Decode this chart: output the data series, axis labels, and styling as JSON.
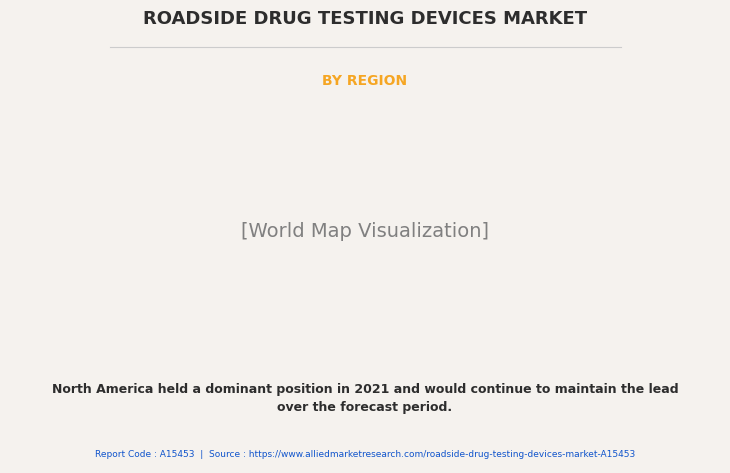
{
  "title": "ROADSIDE DRUG TESTING DEVICES MARKET",
  "subtitle": "BY REGION",
  "subtitle_color": "#F5A623",
  "title_color": "#2d2d2d",
  "background_color": "#F5F2EE",
  "body_text": "North America held a dominant position in 2021 and would continue to maintain the lead\nover the forecast period.",
  "footer_text": "Report Code : A15453  |  Source : https://www.alliedmarketresearch.com/roadside-drug-testing-devices-market-A15453",
  "footer_color": "#1155CC",
  "body_text_color": "#2d2d2d",
  "region_colors": {
    "north_america_dominant": "#5a9e78",
    "north_america_usa": "#e8e8e8",
    "europe": "#8fc49b",
    "asia_pacific": "#8fc49b",
    "latin_america": "#c8cc8a",
    "middle_east_africa": "#c8cc8a",
    "ocean_color": "#F5F2EE"
  },
  "map_shadow_color": "#999999",
  "country_border_color": "#7ab0cc",
  "separator_line_color": "#cccccc"
}
